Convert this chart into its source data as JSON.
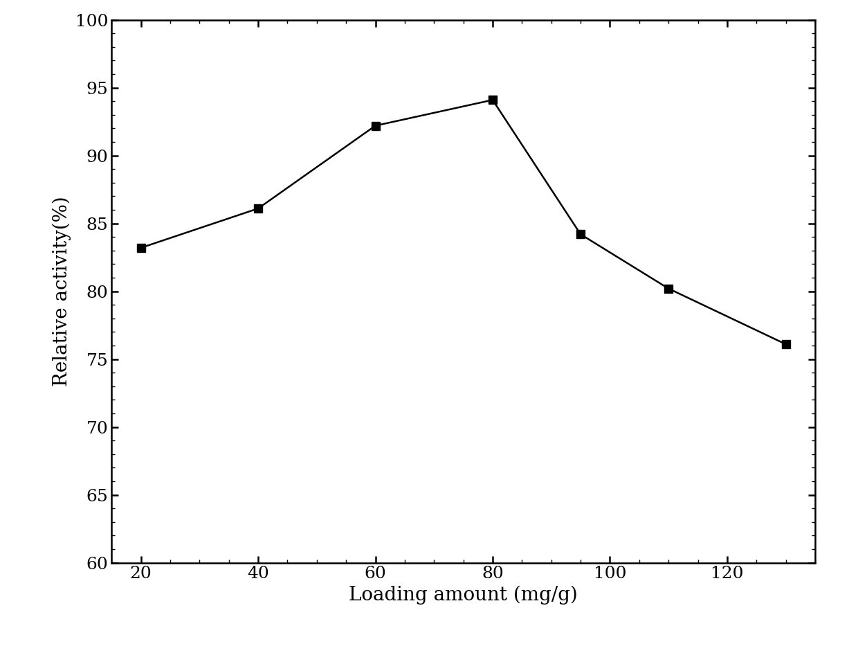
{
  "x": [
    20,
    40,
    60,
    80,
    95,
    110,
    130
  ],
  "y": [
    83.2,
    86.1,
    92.2,
    94.1,
    84.2,
    80.2,
    76.1
  ],
  "xlabel": "Loading amount (mg/g)",
  "ylabel": "Relative activity(%)",
  "xlim": [
    15,
    135
  ],
  "ylim": [
    60,
    100
  ],
  "xticks": [
    20,
    40,
    60,
    80,
    100,
    120
  ],
  "yticks_labeled": [
    60,
    65,
    70,
    75,
    80,
    85,
    90,
    95,
    100
  ],
  "line_color": "#000000",
  "marker": "s",
  "marker_color": "#000000",
  "marker_size": 9,
  "line_width": 1.8,
  "background_color": "#ffffff",
  "xlabel_fontsize": 20,
  "ylabel_fontsize": 20,
  "tick_fontsize": 18
}
